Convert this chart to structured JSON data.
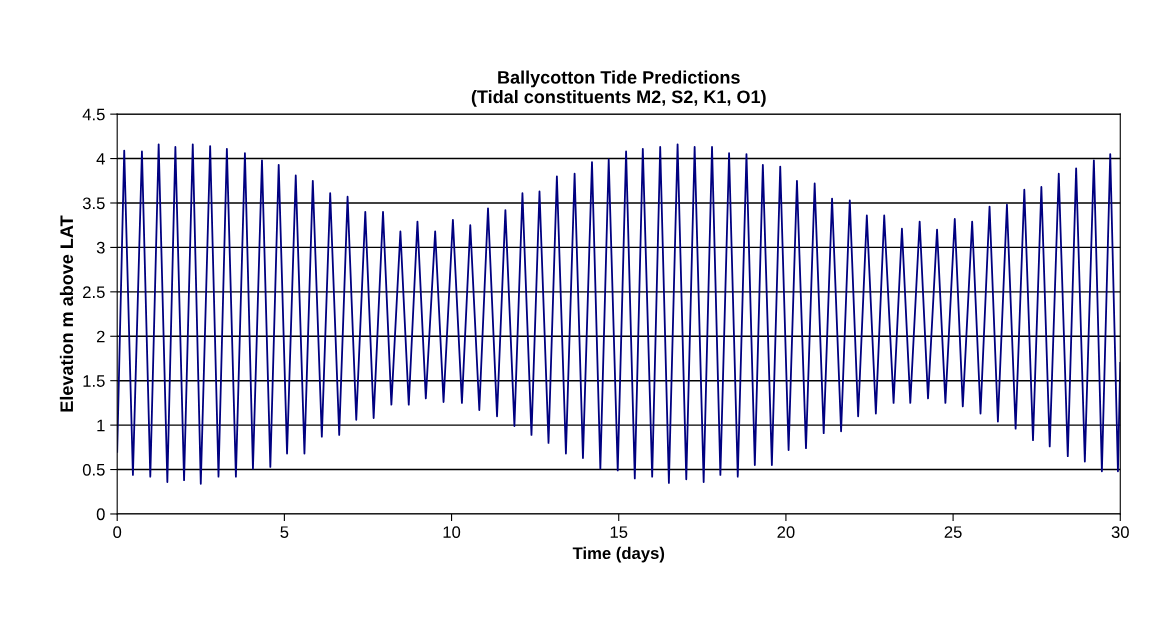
{
  "chart_data": {
    "type": "line",
    "title": "Ballycotton Tide Predictions\n(Tidal constituents M2, S2, K1, O1)",
    "xlabel": "Time (days)",
    "ylabel": "Elevation m above LAT",
    "xlim": [
      0,
      30
    ],
    "xticks": [
      0,
      5,
      10,
      15,
      20,
      25,
      30
    ],
    "ylim": [
      0,
      4.5
    ],
    "yticks": [
      0,
      0.5,
      1,
      1.5,
      2,
      2.5,
      3,
      3.5,
      4,
      4.5
    ],
    "grid": "y",
    "marker": "none",
    "line_style": "solid",
    "series": [
      {
        "color": "#000080",
        "x": [
          0,
          0.21,
          0.47,
          0.74,
          0.99,
          1.24,
          1.5,
          1.74,
          2.0,
          2.26,
          2.5,
          2.78,
          3.03,
          3.28,
          3.55,
          3.82,
          4.06,
          4.33,
          4.58,
          4.83,
          5.08,
          5.34,
          5.6,
          5.85,
          6.12,
          6.37,
          6.64,
          6.89,
          7.15,
          7.42,
          7.67,
          7.95,
          8.2,
          8.47,
          8.72,
          8.98,
          9.23,
          9.51,
          9.76,
          10.04,
          10.31,
          10.56,
          10.83,
          11.09,
          11.36,
          11.61,
          11.88,
          12.12,
          12.39,
          12.63,
          12.9,
          13.15,
          13.42,
          13.68,
          13.93,
          14.2,
          14.45,
          14.7,
          14.97,
          15.22,
          15.48,
          15.72,
          16.0,
          16.24,
          16.5,
          16.76,
          17.02,
          17.27,
          17.54,
          17.79,
          18.04,
          18.3,
          18.56,
          18.82,
          19.07,
          19.31,
          19.58,
          19.83,
          20.08,
          20.33,
          20.6,
          20.86,
          21.13,
          21.38,
          21.65,
          21.91,
          22.16,
          22.42,
          22.69,
          22.94,
          23.22,
          23.47,
          23.72,
          24.0,
          24.25,
          24.52,
          24.77,
          25.05,
          25.29,
          25.57,
          25.82,
          26.09,
          26.34,
          26.61,
          26.87,
          27.13,
          27.39,
          27.64,
          27.89,
          28.16,
          28.43,
          28.68,
          28.94,
          29.21,
          29.45,
          29.7,
          29.93,
          30.0
        ],
        "values": [
          0.7,
          4.09,
          0.44,
          4.08,
          0.42,
          4.16,
          0.36,
          4.13,
          0.38,
          4.16,
          0.34,
          4.14,
          0.42,
          4.11,
          0.42,
          4.06,
          0.51,
          3.98,
          0.53,
          3.93,
          0.68,
          3.81,
          0.68,
          3.75,
          0.87,
          3.61,
          0.89,
          3.57,
          1.06,
          3.4,
          1.08,
          3.4,
          1.23,
          3.18,
          1.23,
          3.29,
          1.3,
          3.18,
          1.26,
          3.31,
          1.25,
          3.25,
          1.17,
          3.44,
          1.1,
          3.42,
          0.99,
          3.61,
          0.89,
          3.63,
          0.8,
          3.8,
          0.68,
          3.83,
          0.63,
          3.96,
          0.51,
          3.99,
          0.49,
          4.08,
          0.4,
          4.11,
          0.42,
          4.13,
          0.35,
          4.16,
          0.39,
          4.13,
          0.36,
          4.13,
          0.44,
          4.06,
          0.42,
          4.05,
          0.55,
          3.93,
          0.55,
          3.91,
          0.72,
          3.75,
          0.74,
          3.72,
          0.91,
          3.55,
          0.93,
          3.53,
          1.1,
          3.36,
          1.13,
          3.36,
          1.25,
          3.21,
          1.25,
          3.29,
          1.3,
          3.2,
          1.25,
          3.32,
          1.21,
          3.29,
          1.13,
          3.46,
          1.04,
          3.48,
          0.96,
          3.65,
          0.83,
          3.68,
          0.76,
          3.83,
          0.65,
          3.89,
          0.59,
          3.98,
          0.48,
          4.05,
          0.48,
          1.7
        ]
      }
    ]
  }
}
